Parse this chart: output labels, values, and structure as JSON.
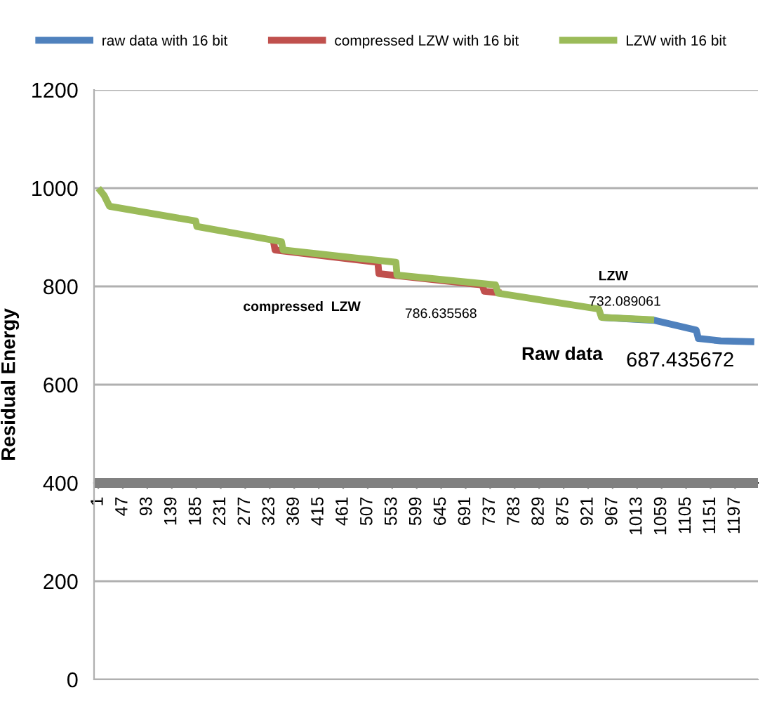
{
  "chart_data": {
    "type": "line",
    "ylabel": "Residual Energy",
    "series": [
      {
        "name": "raw data with 16 bit",
        "color": "#4f81bd",
        "x": [
          946,
          1045,
          1124,
          1128,
          1170,
          1233
        ],
        "values": [
          737,
          731,
          711,
          694,
          689,
          687.435672
        ]
      },
      {
        "name": "compressed LZW with 16 bit",
        "color": "#c0504d",
        "x": [
          330,
          333,
          526,
          528,
          722,
          726,
          758
        ],
        "values": [
          891,
          874,
          849,
          826,
          803,
          790,
          786.635568
        ]
      },
      {
        "name": "LZW with 16 bit",
        "color": "#9bbb59",
        "x": [
          1,
          12,
          22,
          184,
          186,
          345,
          348,
          560,
          562,
          747,
          752,
          941,
          946,
          1045
        ],
        "values": [
          1000,
          985,
          963,
          933,
          922,
          891,
          874,
          849,
          823,
          803,
          786,
          754,
          737,
          732.089061
        ]
      }
    ],
    "xlim": [
      -7,
      1240
    ],
    "xticks": [
      1,
      47,
      93,
      139,
      185,
      231,
      277,
      323,
      369,
      415,
      461,
      507,
      553,
      599,
      645,
      691,
      737,
      783,
      829,
      875,
      921,
      967,
      1013,
      1059,
      1105,
      1151,
      1197
    ],
    "ylim": [
      0,
      1200
    ],
    "yticks": [
      0,
      200,
      400,
      600,
      800,
      1000,
      1200
    ],
    "ref_lines": [
      {
        "axis": "y",
        "value": 400,
        "color": "#808080"
      }
    ],
    "annotations": [
      "compressed  LZW",
      {
        "text": "786.635568",
        "x": 758,
        "y": 786.635568
      },
      "LZW",
      {
        "text": "732.089061",
        "x": 1045,
        "y": 732.089061
      },
      "Raw data",
      {
        "text": "687.435672",
        "x": 1233,
        "y": 687.435672
      }
    ],
    "grid": "y",
    "legend": "top",
    "marker": "none",
    "line_style": "solid"
  }
}
